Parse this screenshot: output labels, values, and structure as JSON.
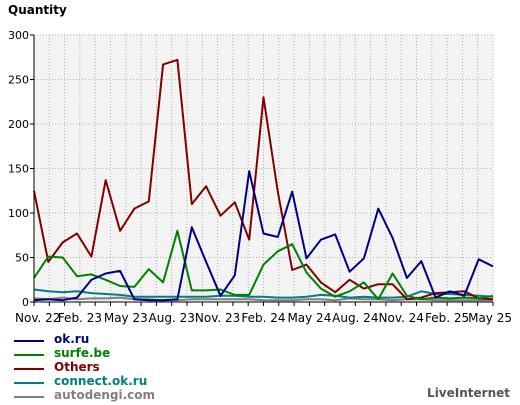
{
  "chart_data": {
    "type": "line",
    "ylabel": "Quantity",
    "ylim": [
      0,
      300
    ],
    "yticks": [
      0,
      50,
      100,
      150,
      200,
      250,
      300
    ],
    "xlim": [
      0,
      30
    ],
    "xtick_labels": [
      "Nov. 22",
      "Feb. 23",
      "May 23",
      "Aug. 23",
      "Nov. 23",
      "Feb. 24",
      "May 24",
      "Aug. 24",
      "Nov. 24",
      "Feb. 25",
      "May 25"
    ],
    "grid": true,
    "legend_position": "bottom-left",
    "series": [
      {
        "name": "ok.ru",
        "color": "#000080",
        "values": [
          2,
          3,
          2,
          5,
          25,
          32,
          35,
          3,
          2,
          2,
          3,
          84,
          45,
          7,
          30,
          147,
          77,
          73,
          124,
          49,
          70,
          76,
          34,
          49,
          105,
          72,
          27,
          46,
          5,
          12,
          7,
          48,
          40
        ]
      },
      {
        "name": "surfe.be",
        "color": "#008000",
        "values": [
          27,
          51,
          50,
          29,
          31,
          25,
          18,
          17,
          37,
          22,
          80,
          13,
          13,
          14,
          8,
          8,
          42,
          57,
          65,
          33,
          15,
          6,
          12,
          22,
          3,
          32,
          7,
          3,
          5,
          4,
          5,
          4,
          7
        ]
      },
      {
        "name": "Others",
        "color": "#800000",
        "values": [
          125,
          45,
          67,
          77,
          51,
          137,
          80,
          105,
          113,
          267,
          272,
          110,
          130,
          97,
          112,
          70,
          230,
          124,
          36,
          42,
          22,
          11,
          25,
          15,
          20,
          20,
          3,
          5,
          10,
          11,
          12,
          4,
          3
        ]
      },
      {
        "name": "connect.ok.ru",
        "color": "#008080",
        "values": [
          14,
          12,
          11,
          12,
          10,
          9,
          8,
          6,
          6,
          6,
          6,
          6,
          6,
          7,
          7,
          6,
          6,
          5,
          5,
          6,
          8,
          7,
          5,
          6,
          5,
          5,
          6,
          12,
          9,
          9,
          8,
          7,
          6
        ]
      },
      {
        "name": "autodengi.com",
        "color": "#808080",
        "values": [
          4,
          3,
          5,
          3,
          4,
          4,
          5,
          3,
          3,
          2,
          2,
          3,
          3,
          3,
          3,
          3,
          2,
          2,
          2,
          3,
          3,
          2,
          4,
          3,
          3,
          2,
          3,
          3,
          2,
          2,
          2,
          2,
          2
        ]
      }
    ]
  },
  "credit": "LiveInternet"
}
